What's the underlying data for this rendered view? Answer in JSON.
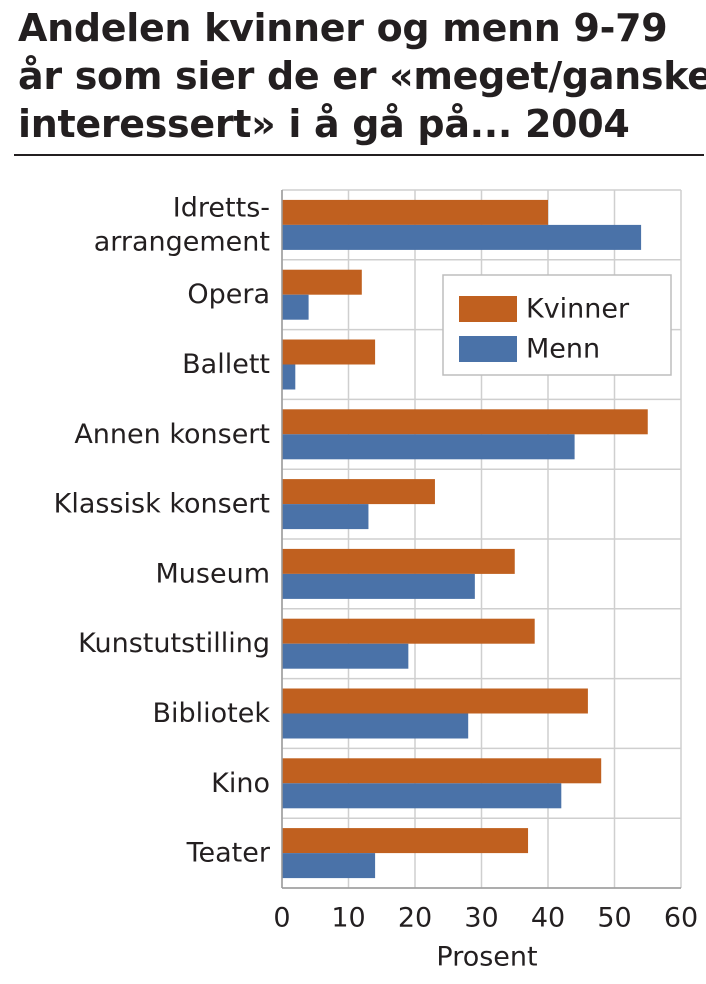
{
  "title_lines": [
    "Andelen kvinner og menn 9-79",
    "år som sier de er «meget/ganske",
    "interessert» i å gå på... 2004"
  ],
  "colors": {
    "kvinner": "#c0601f",
    "menn": "#4a72a8",
    "grid": "#cfcfcf",
    "background": "#ffffff"
  },
  "chart_data": {
    "type": "bar",
    "orientation": "horizontal",
    "categories": [
      "Idretts-\narrangement",
      "Opera",
      "Ballett",
      "Annen konsert",
      "Klassisk konsert",
      "Museum",
      "Kunstutstilling",
      "Bibliotek",
      "Kino",
      "Teater"
    ],
    "category_lines": [
      [
        "Idretts-",
        "arrangement"
      ],
      [
        "Opera"
      ],
      [
        "Ballett"
      ],
      [
        "Annen konsert"
      ],
      [
        "Klassisk konsert"
      ],
      [
        "Museum"
      ],
      [
        "Kunstutstilling"
      ],
      [
        "Bibliotek"
      ],
      [
        "Kino"
      ],
      [
        "Teater"
      ]
    ],
    "series": [
      {
        "name": "Kvinner",
        "values": [
          40,
          12,
          14,
          55,
          23,
          35,
          38,
          46,
          48,
          37
        ]
      },
      {
        "name": "Menn",
        "values": [
          54,
          4,
          2,
          44,
          13,
          29,
          19,
          28,
          42,
          14
        ]
      }
    ],
    "xlabel": "Prosent",
    "xlim": [
      0,
      60
    ],
    "xticks": [
      0,
      10,
      20,
      30,
      40,
      50,
      60
    ],
    "grid": true,
    "legend": "top-right"
  }
}
